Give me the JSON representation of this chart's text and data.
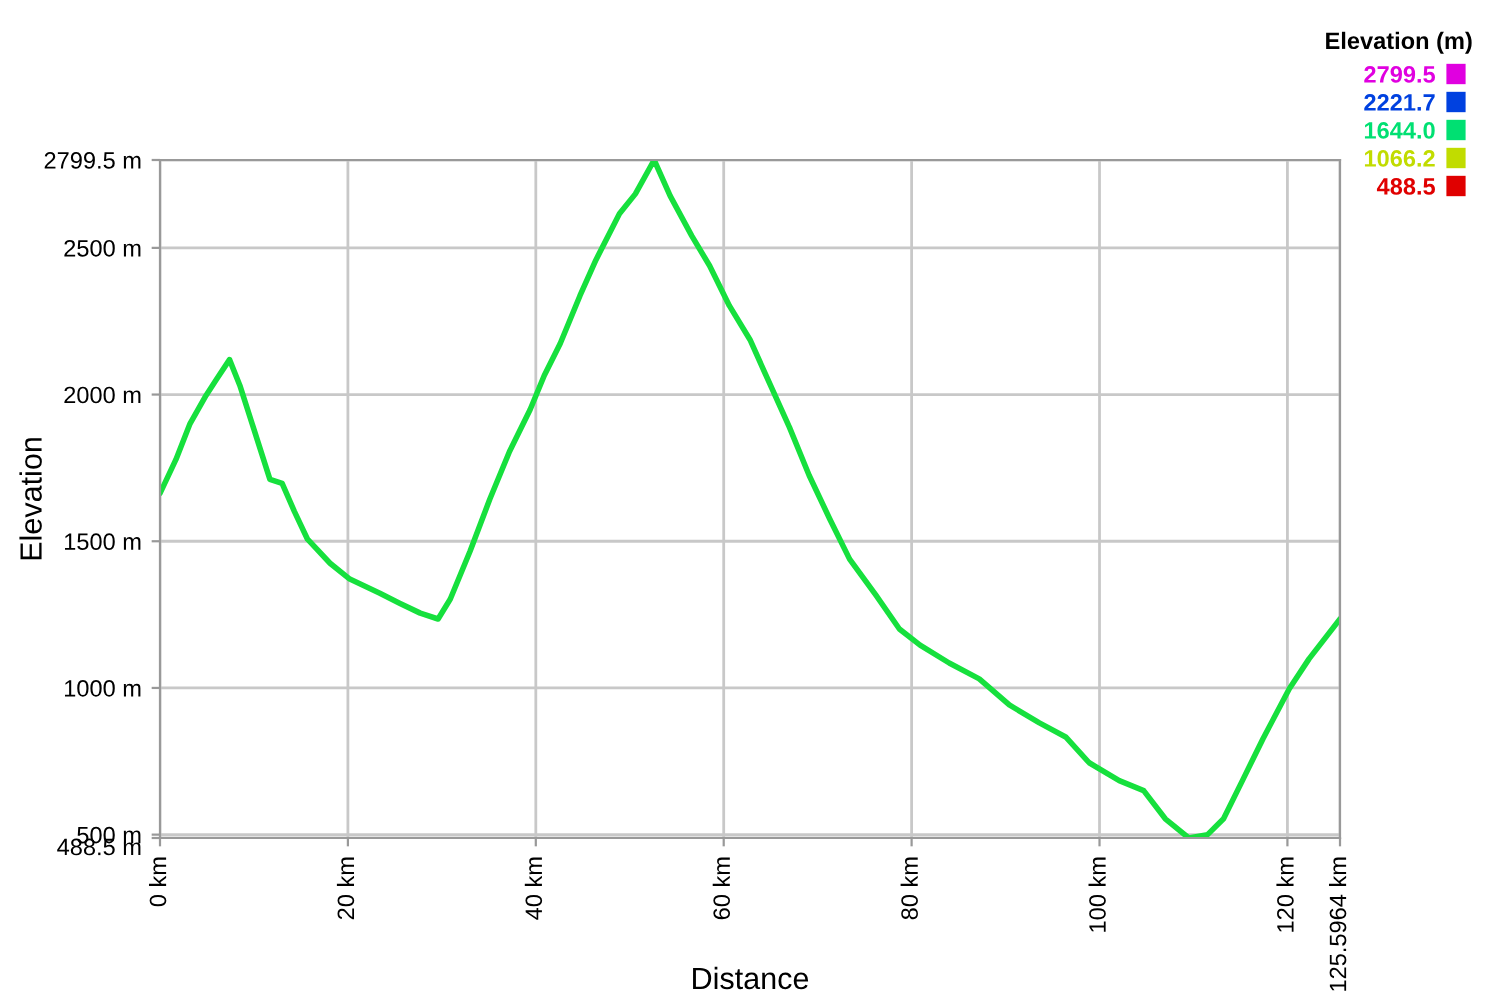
{
  "chart_data": {
    "type": "line",
    "xlabel": "Distance",
    "ylabel": "Elevation",
    "clabel": "Elevation (m)",
    "x": [
      0,
      1.7,
      3.2,
      4.9,
      6.0,
      7.4,
      8.5,
      10,
      11.7,
      13.0,
      14.3,
      15.7,
      18.1,
      20.2,
      23.4,
      25.5,
      27.7,
      29.6,
      30.9,
      33,
      35.1,
      37.2,
      39.4,
      40.9,
      42.6,
      44.7,
      46.4,
      48.9,
      50.6,
      52.6,
      54.3,
      56.6,
      58.5,
      60.6,
      62.8,
      64.9,
      67,
      69.1,
      71.3,
      73.4,
      76.2,
      78.7,
      80.9,
      84,
      87.2,
      90.4,
      93.6,
      96.4,
      98.9,
      102.1,
      104.7,
      107,
      109.5,
      111.5,
      113.2,
      115.3,
      117.4,
      120.2,
      122.3,
      125.5964
    ],
    "values": [
      1663,
      1779,
      1901,
      1997,
      2051,
      2119,
      2031,
      1881,
      1711,
      1697,
      1602,
      1507,
      1425,
      1371,
      1323,
      1289,
      1255,
      1235,
      1303,
      1466,
      1643,
      1806,
      1949,
      2065,
      2174,
      2337,
      2459,
      2616,
      2684,
      2799.5,
      2677,
      2541,
      2439,
      2303,
      2187,
      2037,
      1888,
      1724,
      1575,
      1439,
      1316,
      1201,
      1146,
      1085,
      1031,
      942,
      881,
      833,
      745,
      684,
      650,
      554,
      488.5,
      500,
      554,
      690,
      827,
      997,
      1099,
      1235
    ],
    "cticks": [
      {
        "value": 2799.5,
        "label": "2799.5"
      },
      {
        "value": 2221.7,
        "label": "2221.7"
      },
      {
        "value": 1644.0,
        "label": "1644.0"
      },
      {
        "value": 1066.2,
        "label": "1066.2"
      },
      {
        "value": 488.5,
        "label": "488.5"
      }
    ],
    "xlim": [
      0,
      125.5964
    ],
    "xticks": [
      {
        "value": 0,
        "label": "0 km"
      },
      {
        "value": 20,
        "label": "20 km"
      },
      {
        "value": 40,
        "label": "40 km"
      },
      {
        "value": 60,
        "label": "60 km"
      },
      {
        "value": 80,
        "label": "80 km"
      },
      {
        "value": 100,
        "label": "100 km"
      },
      {
        "value": 120,
        "label": "120 km"
      },
      {
        "value": 125.5964,
        "label": "125.5964 km"
      }
    ],
    "ylim": [
      488.5,
      2799.5
    ],
    "yticks": [
      {
        "value": 488.5,
        "label": "488.5 m"
      },
      {
        "value": 500,
        "label": "500 m"
      },
      {
        "value": 1000,
        "label": "1000 m"
      },
      {
        "value": 1500,
        "label": "1500 m"
      },
      {
        "value": 2000,
        "label": "2000 m"
      },
      {
        "value": 2500,
        "label": "2500 m"
      },
      {
        "value": 2799.5,
        "label": "2799.5 m"
      }
    ],
    "grid": true,
    "marker": "none",
    "line_style": "solid"
  }
}
